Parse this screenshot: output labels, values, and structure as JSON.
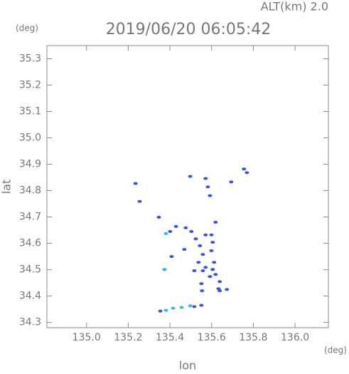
{
  "chart_data": {
    "type": "scatter",
    "alt_label": "ALT(km) 2.0",
    "title": "2019/06/20 06:05:42",
    "y_unit": "(deg)",
    "x_unit": "(deg)",
    "x_label": "lon",
    "y_label": "lat",
    "xlim": [
      134.81,
      136.16
    ],
    "ylim": [
      34.28,
      35.35
    ],
    "xticks": [
      {
        "value": 135,
        "label": "135.0"
      },
      135.2,
      135.4,
      135.6,
      135.8,
      {
        "value": 136,
        "label": "136.0"
      }
    ],
    "yticks": [
      35.3,
      35.2,
      35.1,
      {
        "value": 35,
        "label": "35.0"
      },
      34.9,
      34.8,
      34.7,
      34.6,
      34.5,
      34.4,
      34.3
    ],
    "series": [
      {
        "color": "#3a50e6",
        "x": [
          135.235,
          135.255,
          135.497,
          135.571,
          135.582,
          135.592,
          135.694,
          135.755,
          135.769,
          135.347,
          135.401,
          135.429,
          135.476,
          135.503,
          135.524,
          135.544,
          135.571,
          135.599,
          135.619,
          135.605,
          135.558,
          135.599,
          135.469,
          135.408,
          135.374,
          135.537,
          135.558,
          135.517,
          135.571,
          135.605,
          135.592,
          135.619,
          135.551,
          135.554,
          135.633,
          135.639,
          135.612,
          135.639,
          135.673,
          135.551,
          135.517,
          135.354
        ],
        "values": [
          34.827,
          34.759,
          34.854,
          34.846,
          34.814,
          34.781,
          34.833,
          34.882,
          34.868,
          34.699,
          34.645,
          34.664,
          34.659,
          34.645,
          34.617,
          34.591,
          34.632,
          34.632,
          34.68,
          34.604,
          34.558,
          34.572,
          34.577,
          34.55,
          34.501,
          34.528,
          34.496,
          34.496,
          34.509,
          34.501,
          34.474,
          34.482,
          34.447,
          34.42,
          34.428,
          34.455,
          34.528,
          34.42,
          34.425,
          34.365,
          34.36,
          34.343
        ]
      },
      {
        "color": "#36b8ec",
        "x": [
          135.381,
          135.374,
          135.381,
          135.415,
          135.456,
          135.497
        ],
        "values": [
          34.637,
          34.501,
          34.346,
          34.354,
          34.357,
          34.363
        ]
      }
    ]
  }
}
